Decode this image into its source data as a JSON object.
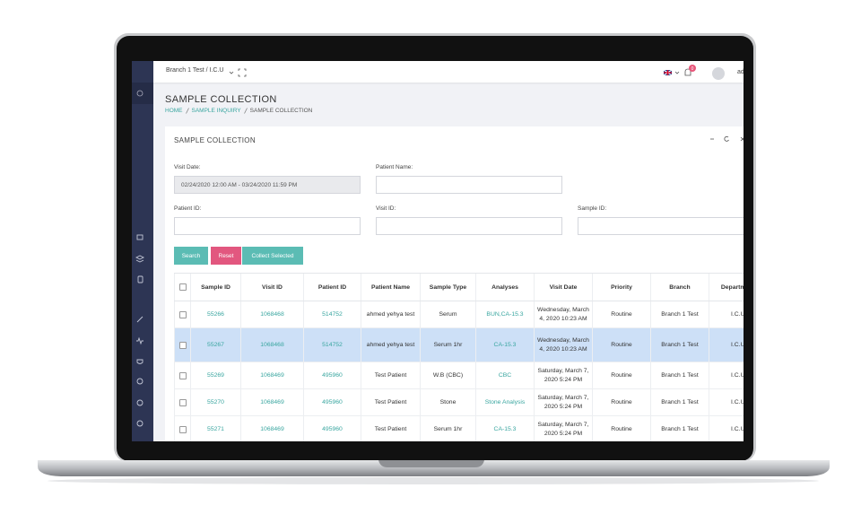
{
  "topbar": {
    "branch": "Branch 1 Test / I.C.U",
    "notification_count": "0",
    "user": "ad"
  },
  "page": {
    "title": "SAMPLE COLLECTION",
    "breadcrumb": [
      "HOME",
      "SAMPLE INQUIRY",
      "SAMPLE COLLECTION"
    ]
  },
  "card": {
    "title": "SAMPLE COLLECTION"
  },
  "form": {
    "visit_date_label": "Visit Date:",
    "visit_date_value": "02/24/2020 12:00 AM - 03/24/2020 11:59 PM",
    "patient_name_label": "Patient Name:",
    "patient_id_label": "Patient ID:",
    "visit_id_label": "Visit ID:",
    "sample_id_label": "Sample ID:"
  },
  "buttons": [
    "Search",
    "Reset",
    "Collect Selected"
  ],
  "table": {
    "columns": [
      "Sample ID",
      "Visit ID",
      "Patient ID",
      "Patient Name",
      "Sample Type",
      "Analyses",
      "Visit Date",
      "Priority",
      "Branch",
      "Department"
    ],
    "rows": [
      [
        "55266",
        "1068468",
        "514752",
        "ahmed yehya test",
        "Serum",
        "BUN,CA-15.3",
        "Wednesday, March 4, 2020 10:23 AM",
        "Routine",
        "Branch 1 Test",
        "I.C.U"
      ],
      [
        "55267",
        "1068468",
        "514752",
        "ahmed yehya test",
        "Serum 1hr",
        "CA-15.3",
        "Wednesday, March 4, 2020 10:23 AM",
        "Routine",
        "Branch 1 Test",
        "I.C.U"
      ],
      [
        "55269",
        "1068469",
        "495960",
        "Test Patient",
        "W.B (CBC)",
        "CBC",
        "Saturday, March 7, 2020 5:24 PM",
        "Routine",
        "Branch 1 Test",
        "I.C.U"
      ],
      [
        "55270",
        "1068469",
        "495960",
        "Test Patient",
        "Stone",
        "Stone Analysis",
        "Saturday, March 7, 2020 5:24 PM",
        "Routine",
        "Branch 1 Test",
        "I.C.U"
      ],
      [
        "55271",
        "1068469",
        "495960",
        "Test Patient",
        "Serum 1hr",
        "CA-15.3",
        "Saturday, March 7, 2020 5:24 PM",
        "Routine",
        "Branch 1 Test",
        "I.C.U"
      ]
    ]
  }
}
